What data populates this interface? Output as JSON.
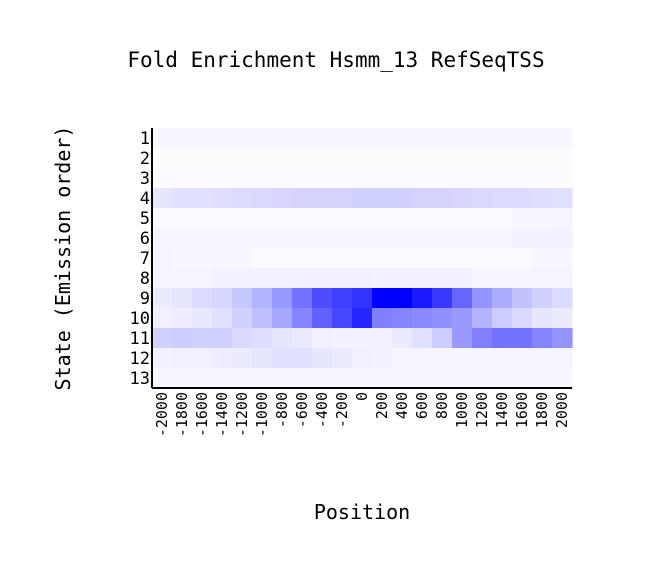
{
  "chart_data": {
    "type": "heatmap",
    "title": "Fold Enrichment Hsmm_13 RefSeqTSS",
    "xlabel": "Position",
    "ylabel": "State (Emission order)",
    "x_categories": [
      "-2000",
      "-1800",
      "-1600",
      "-1400",
      "-1200",
      "-1000",
      "-800",
      "-600",
      "-400",
      "-200",
      "0",
      "200",
      "400",
      "600",
      "800",
      "1000",
      "1200",
      "1400",
      "1600",
      "1800",
      "2000"
    ],
    "y_categories": [
      "1",
      "2",
      "3",
      "4",
      "5",
      "6",
      "7",
      "8",
      "9",
      "10",
      "11",
      "12",
      "13"
    ],
    "color_low": "#ffffff",
    "color_high": "#0000ff",
    "intensity_scale": "0-1 relative fill toward color_high",
    "values": [
      [
        0.03,
        0.03,
        0.03,
        0.03,
        0.03,
        0.03,
        0.03,
        0.03,
        0.03,
        0.03,
        0.03,
        0.03,
        0.03,
        0.03,
        0.03,
        0.03,
        0.03,
        0.03,
        0.03,
        0.03,
        0.03
      ],
      [
        0.01,
        0.01,
        0.01,
        0.01,
        0.01,
        0.01,
        0.01,
        0.01,
        0.01,
        0.01,
        0.01,
        0.01,
        0.01,
        0.01,
        0.01,
        0.01,
        0.01,
        0.01,
        0.01,
        0.01,
        0.01
      ],
      [
        0.02,
        0.02,
        0.02,
        0.02,
        0.02,
        0.02,
        0.02,
        0.02,
        0.02,
        0.02,
        0.02,
        0.02,
        0.02,
        0.02,
        0.02,
        0.02,
        0.02,
        0.02,
        0.02,
        0.02,
        0.02
      ],
      [
        0.1,
        0.12,
        0.12,
        0.13,
        0.14,
        0.15,
        0.16,
        0.17,
        0.17,
        0.17,
        0.18,
        0.18,
        0.18,
        0.17,
        0.17,
        0.16,
        0.15,
        0.14,
        0.14,
        0.13,
        0.12
      ],
      [
        0.02,
        0.02,
        0.02,
        0.02,
        0.02,
        0.02,
        0.02,
        0.02,
        0.02,
        0.02,
        0.02,
        0.02,
        0.02,
        0.02,
        0.02,
        0.02,
        0.02,
        0.02,
        0.03,
        0.03,
        0.04
      ],
      [
        0.04,
        0.04,
        0.04,
        0.04,
        0.04,
        0.04,
        0.04,
        0.04,
        0.04,
        0.04,
        0.03,
        0.03,
        0.03,
        0.03,
        0.03,
        0.03,
        0.04,
        0.04,
        0.05,
        0.05,
        0.05
      ],
      [
        0.04,
        0.03,
        0.03,
        0.03,
        0.03,
        0.02,
        0.02,
        0.02,
        0.02,
        0.02,
        0.02,
        0.02,
        0.02,
        0.02,
        0.02,
        0.02,
        0.02,
        0.02,
        0.02,
        0.03,
        0.03
      ],
      [
        0.04,
        0.04,
        0.04,
        0.05,
        0.05,
        0.05,
        0.06,
        0.06,
        0.06,
        0.06,
        0.06,
        0.05,
        0.05,
        0.05,
        0.05,
        0.05,
        0.04,
        0.04,
        0.04,
        0.04,
        0.04
      ],
      [
        0.08,
        0.1,
        0.14,
        0.16,
        0.22,
        0.3,
        0.4,
        0.55,
        0.7,
        0.75,
        0.8,
        1.0,
        1.0,
        0.9,
        0.78,
        0.6,
        0.42,
        0.32,
        0.24,
        0.18,
        0.14
      ],
      [
        0.06,
        0.07,
        0.09,
        0.12,
        0.18,
        0.25,
        0.35,
        0.48,
        0.62,
        0.72,
        0.85,
        0.5,
        0.48,
        0.46,
        0.44,
        0.4,
        0.3,
        0.2,
        0.15,
        0.1,
        0.08
      ],
      [
        0.18,
        0.2,
        0.18,
        0.18,
        0.15,
        0.13,
        0.1,
        0.08,
        0.06,
        0.05,
        0.05,
        0.05,
        0.08,
        0.12,
        0.2,
        0.4,
        0.5,
        0.55,
        0.55,
        0.48,
        0.42
      ],
      [
        0.05,
        0.06,
        0.06,
        0.07,
        0.08,
        0.1,
        0.12,
        0.12,
        0.1,
        0.08,
        0.06,
        0.05,
        0.04,
        0.04,
        0.04,
        0.04,
        0.04,
        0.04,
        0.04,
        0.04,
        0.04
      ],
      [
        0.03,
        0.03,
        0.03,
        0.03,
        0.03,
        0.03,
        0.03,
        0.03,
        0.03,
        0.03,
        0.03,
        0.03,
        0.03,
        0.03,
        0.03,
        0.03,
        0.03,
        0.03,
        0.03,
        0.03,
        0.03
      ]
    ]
  }
}
